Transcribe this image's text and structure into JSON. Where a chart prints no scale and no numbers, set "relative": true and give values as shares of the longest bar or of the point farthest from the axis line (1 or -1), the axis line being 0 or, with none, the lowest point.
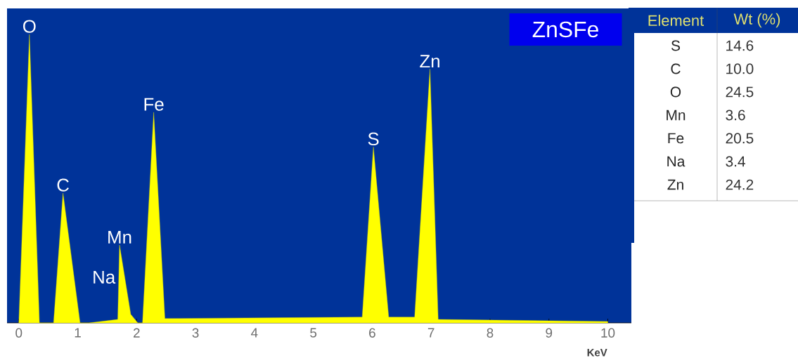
{
  "chart_data": [
    {
      "type": "area",
      "title": "ZnSFe",
      "xlabel": "KeV",
      "relative": true,
      "color": "#ffff00",
      "xlim": [
        -0.2,
        10.4
      ],
      "xticks": [
        0,
        1,
        2,
        3,
        4,
        5,
        6,
        7,
        8,
        9,
        10
      ],
      "x": [
        0.0,
        0.18,
        0.35,
        0.59,
        0.75,
        1.04,
        1.19,
        1.68,
        1.71,
        1.9,
        2.02,
        2.1,
        2.29,
        2.48,
        5.83,
        6.02,
        6.28,
        6.72,
        6.98,
        7.12,
        10.0
      ],
      "values": [
        0,
        1.0,
        0,
        0,
        0.45,
        0,
        0,
        0.012,
        0.27,
        0.03,
        0,
        0,
        0.73,
        0.015,
        0.02,
        0.61,
        0.02,
        0.02,
        0.88,
        0.012,
        0.005
      ],
      "annotations": [
        {
          "text": "O",
          "x": 0.18,
          "y": 1.0
        },
        {
          "text": "C",
          "x": 0.75,
          "y": 0.45
        },
        {
          "text": "Mn",
          "x": 1.71,
          "y": 0.27
        },
        "Na",
        {
          "text": "Fe",
          "x": 2.29,
          "y": 0.73
        },
        {
          "text": "S",
          "x": 6.02,
          "y": 0.61
        },
        {
          "text": "Zn",
          "x": 6.98,
          "y": 0.88
        }
      ]
    },
    {
      "type": "other",
      "xlabel": "Element",
      "ylabel": "Wt (%)",
      "categories": [
        "S",
        "C",
        "O",
        "Mn",
        "Fe",
        "Na",
        "Zn"
      ],
      "value_labels": [
        "14.6",
        "10.0",
        "24.5",
        "3.6",
        "20.5",
        "3.4",
        "24.2"
      ]
    }
  ]
}
